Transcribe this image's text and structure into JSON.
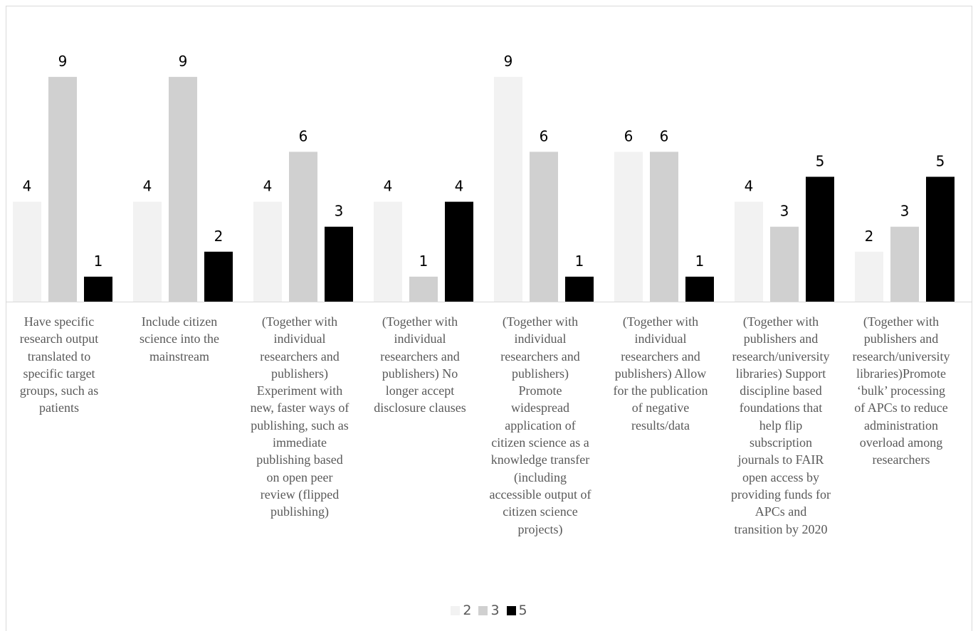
{
  "chart_data": {
    "type": "bar",
    "categories": [
      "Have specific research output translated to specific target groups, such as patients",
      "Include citizen science into the mainstream",
      "(Together with individual researchers and publishers) Experiment with new, faster ways of publishing, such as immediate publishing based on open peer review (flipped publishing)",
      "(Together with individual researchers and publishers) No longer accept disclosure clauses",
      "(Together with individual researchers and publishers) Promote widespread application of citizen science as a knowledge transfer (including accessible output of citizen science projects)",
      "(Together with individual researchers and publishers) Allow for the publication of negative results/data",
      "(Together with publishers and research/university libraries) Support discipline based foundations that help flip subscription journals to FAIR open access by providing funds for APCs and transition by 2020",
      "(Together with publishers and research/university libraries)Promote ‘bulk’ processing of APCs to reduce administration overload among researchers"
    ],
    "category_lines": [
      [
        "Have specific",
        "research output",
        "translated to",
        "specific target",
        "groups, such as",
        "patients"
      ],
      [
        "Include citizen",
        "science into the",
        "mainstream"
      ],
      [
        "(Together with",
        "individual",
        "researchers and",
        "publishers)",
        "Experiment with",
        "new, faster ways of",
        "publishing, such as",
        "immediate",
        "publishing based",
        "on open peer",
        "review (flipped",
        "publishing)"
      ],
      [
        "(Together with",
        "individual",
        "researchers and",
        "publishers) No",
        "longer accept",
        "disclosure clauses"
      ],
      [
        "(Together with",
        "individual",
        "researchers and",
        "publishers)",
        "Promote",
        "widespread",
        "application of",
        "citizen science as a",
        "knowledge transfer",
        "(including",
        "accessible output of",
        "citizen science",
        "projects)"
      ],
      [
        "(Together with",
        "individual",
        "researchers and",
        "publishers) Allow",
        "for the publication",
        "of negative",
        "results/data"
      ],
      [
        "(Together with",
        "publishers and",
        "research/university",
        "libraries) Support",
        "discipline based",
        "foundations that",
        "help flip",
        "subscription",
        "journals to FAIR",
        "open access by",
        "providing funds for",
        "APCs and",
        "transition by 2020"
      ],
      [
        "(Together with",
        "publishers and",
        "research/university",
        "libraries)Promote",
        "‘bulk’ processing",
        "of APCs to reduce",
        "administration",
        "overload among",
        "researchers"
      ]
    ],
    "series": [
      {
        "name": "2",
        "color": "#f2f2f2",
        "values": [
          4,
          4,
          4,
          4,
          9,
          6,
          4,
          2
        ]
      },
      {
        "name": "3",
        "color": "#d0d0d0",
        "values": [
          9,
          9,
          6,
          1,
          6,
          6,
          3,
          3
        ]
      },
      {
        "name": "5",
        "color": "#000000",
        "values": [
          1,
          2,
          3,
          4,
          1,
          1,
          5,
          5
        ]
      }
    ],
    "ylim": [
      0,
      10
    ],
    "title": "",
    "xlabel": "",
    "ylabel": "",
    "grid": false,
    "legend_position": "bottom",
    "show_data_labels": true
  }
}
